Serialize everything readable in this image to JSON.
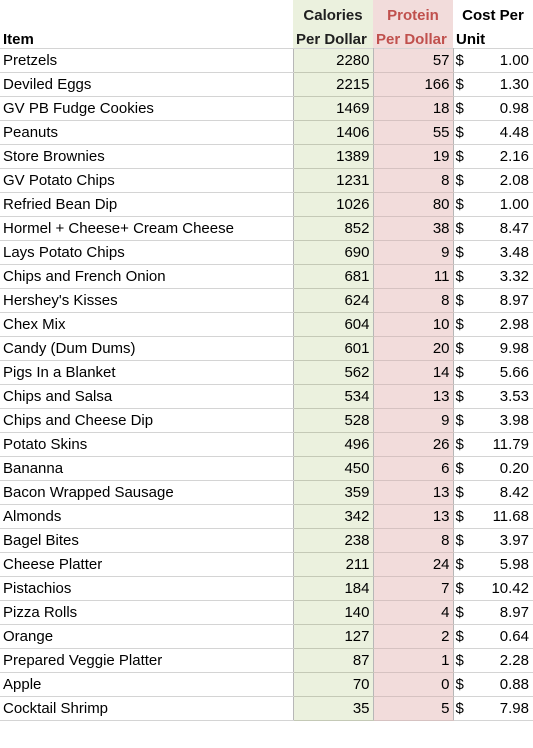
{
  "headers": {
    "item": "Item",
    "calories_line1": "Calories",
    "calories_line2": "Per Dollar",
    "protein_line1": "Protein",
    "protein_line2": "Per Dollar",
    "cost_line1": "Cost Per",
    "cost_line2": "Unit"
  },
  "currency_symbol": "$",
  "colors": {
    "calories_fill": "#ebf1de",
    "protein_fill": "#f2dcdb",
    "protein_header_text": "#c0504d"
  },
  "rows": [
    {
      "item": "Pretzels",
      "calories": "2280",
      "protein": "57",
      "cost": "1.00"
    },
    {
      "item": "Deviled Eggs",
      "calories": "2215",
      "protein": "166",
      "cost": "1.30"
    },
    {
      "item": "GV PB Fudge Cookies",
      "calories": "1469",
      "protein": "18",
      "cost": "0.98"
    },
    {
      "item": "Peanuts",
      "calories": "1406",
      "protein": "55",
      "cost": "4.48"
    },
    {
      "item": "Store Brownies",
      "calories": "1389",
      "protein": "19",
      "cost": "2.16"
    },
    {
      "item": "GV Potato Chips",
      "calories": "1231",
      "protein": "8",
      "cost": "2.08"
    },
    {
      "item": "Refried Bean Dip",
      "calories": "1026",
      "protein": "80",
      "cost": "1.00"
    },
    {
      "item": "Hormel + Cheese+ Cream Cheese",
      "calories": "852",
      "protein": "38",
      "cost": "8.47"
    },
    {
      "item": "Lays Potato Chips",
      "calories": "690",
      "protein": "9",
      "cost": "3.48"
    },
    {
      "item": "Chips and French Onion",
      "calories": "681",
      "protein": "11",
      "cost": "3.32"
    },
    {
      "item": "Hershey's Kisses",
      "calories": "624",
      "protein": "8",
      "cost": "8.97"
    },
    {
      "item": "Chex Mix",
      "calories": "604",
      "protein": "10",
      "cost": "2.98"
    },
    {
      "item": "Candy (Dum Dums)",
      "calories": "601",
      "protein": "20",
      "cost": "9.98"
    },
    {
      "item": "Pigs In a Blanket",
      "calories": "562",
      "protein": "14",
      "cost": "5.66"
    },
    {
      "item": "Chips and Salsa",
      "calories": "534",
      "protein": "13",
      "cost": "3.53"
    },
    {
      "item": "Chips and Cheese Dip",
      "calories": "528",
      "protein": "9",
      "cost": "3.98"
    },
    {
      "item": "Potato Skins",
      "calories": "496",
      "protein": "26",
      "cost": "11.79"
    },
    {
      "item": "Bananna",
      "calories": "450",
      "protein": "6",
      "cost": "0.20"
    },
    {
      "item": "Bacon Wrapped Sausage",
      "calories": "359",
      "protein": "13",
      "cost": "8.42"
    },
    {
      "item": "Almonds",
      "calories": "342",
      "protein": "13",
      "cost": "11.68"
    },
    {
      "item": "Bagel Bites",
      "calories": "238",
      "protein": "8",
      "cost": "3.97"
    },
    {
      "item": "Cheese Platter",
      "calories": "211",
      "protein": "24",
      "cost": "5.98"
    },
    {
      "item": "Pistachios",
      "calories": "184",
      "protein": "7",
      "cost": "10.42"
    },
    {
      "item": "Pizza Rolls",
      "calories": "140",
      "protein": "4",
      "cost": "8.97"
    },
    {
      "item": "Orange",
      "calories": "127",
      "protein": "2",
      "cost": "0.64"
    },
    {
      "item": "Prepared Veggie Platter",
      "calories": "87",
      "protein": "1",
      "cost": "2.28"
    },
    {
      "item": "Apple",
      "calories": "70",
      "protein": "0",
      "cost": "0.88"
    },
    {
      "item": "Cocktail Shrimp",
      "calories": "35",
      "protein": "5",
      "cost": "7.98"
    }
  ]
}
